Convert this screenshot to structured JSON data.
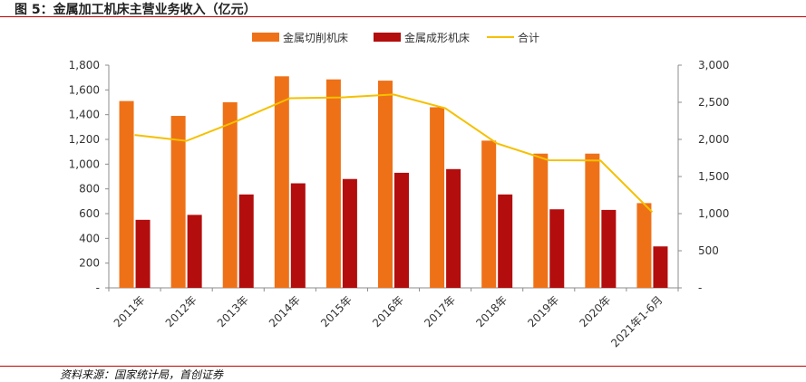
{
  "figure_title": "图 5：金属加工机床主营业务收入（亿元）",
  "source": "资料来源：国家统计局，首创证券",
  "chart_data": {
    "type": "bar",
    "categories": [
      "2011年",
      "2012年",
      "2013年",
      "2014年",
      "2015年",
      "2016年",
      "2017年",
      "2018年",
      "2019年",
      "2020年",
      "2021年1-6月"
    ],
    "series": [
      {
        "name": "金属切削机床",
        "type": "bar",
        "axis": "left",
        "color": "#ee7118",
        "values": [
          1510,
          1390,
          1500,
          1710,
          1685,
          1675,
          1460,
          1190,
          1085,
          1085,
          685
        ]
      },
      {
        "name": "金属成形机床",
        "type": "bar",
        "axis": "left",
        "color": "#b30d0d",
        "values": [
          550,
          590,
          755,
          845,
          880,
          930,
          960,
          755,
          635,
          630,
          335
        ]
      },
      {
        "name": "合计",
        "type": "line",
        "axis": "right",
        "color": "#f5c000",
        "values": [
          2060,
          1980,
          2255,
          2555,
          2565,
          2605,
          2420,
          1945,
          1720,
          1715,
          1020
        ]
      }
    ],
    "y_left": {
      "min": 0,
      "max": 1800,
      "step": 200,
      "tick_labels": [
        "-",
        "200",
        "400",
        "600",
        "800",
        "1,000",
        "1,200",
        "1,400",
        "1,600",
        "1,800"
      ]
    },
    "y_right": {
      "min": 0,
      "max": 3000,
      "step": 500,
      "tick_labels": [
        "-",
        "500",
        "1,000",
        "1,500",
        "2,000",
        "2,500",
        "3,000"
      ]
    },
    "legend_position": "top",
    "grid": false
  }
}
